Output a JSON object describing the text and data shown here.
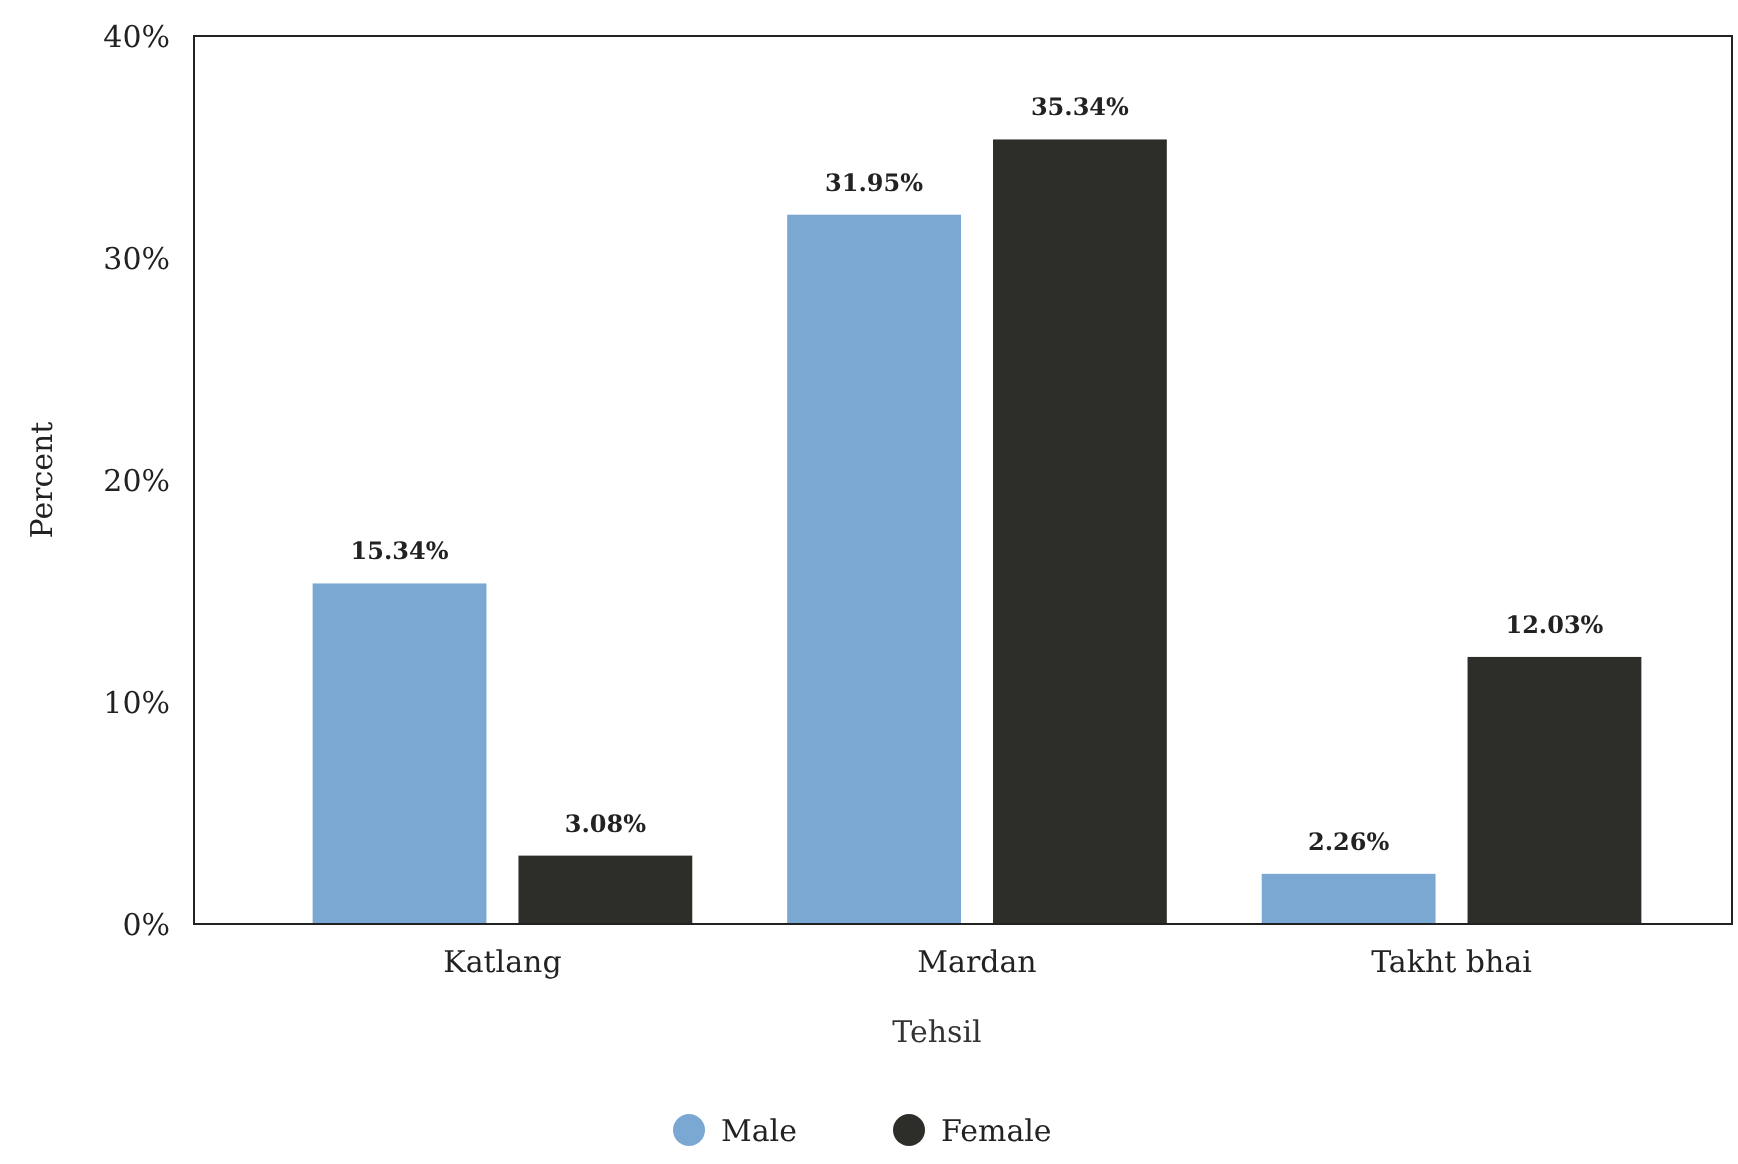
{
  "chart_data": {
    "type": "bar",
    "xlabel": "Tehsil",
    "ylabel": "Percent",
    "categories": [
      "Katlang",
      "Mardan",
      "Takht bhai"
    ],
    "series": [
      {
        "name": "Male",
        "color": "#7ba7d3",
        "values": [
          15.34,
          31.95,
          2.26
        ],
        "value_labels": [
          "15.34%",
          "31.95%",
          "2.26%"
        ]
      },
      {
        "name": "Female",
        "color": "#2d2d2a",
        "values": [
          3.08,
          35.34,
          12.03
        ],
        "value_labels": [
          "3.08%",
          "35.34%",
          "12.03%"
        ]
      }
    ],
    "ylim": [
      0,
      40
    ],
    "yticks": [
      {
        "value": 0,
        "label": "0%"
      },
      {
        "value": 10,
        "label": "10%"
      },
      {
        "value": 20,
        "label": "20%"
      },
      {
        "value": 30,
        "label": "30%"
      },
      {
        "value": 40,
        "label": "40%"
      }
    ],
    "grid": false,
    "legend": "bottom"
  }
}
